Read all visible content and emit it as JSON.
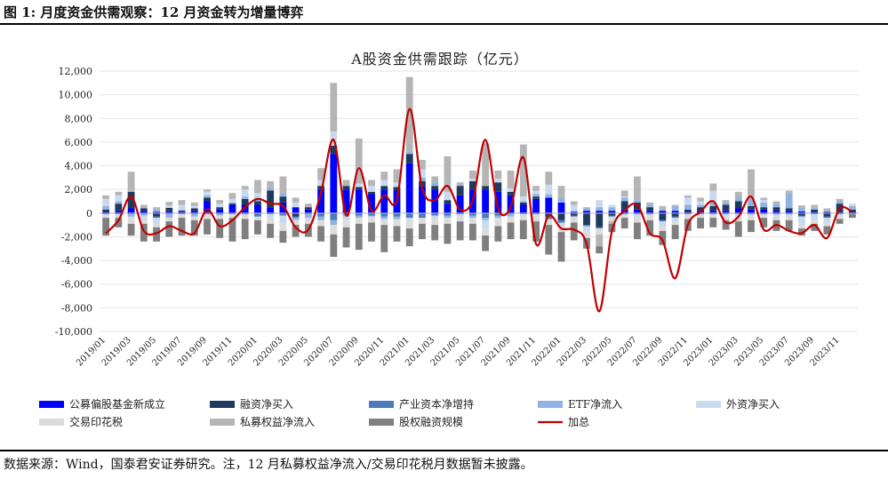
{
  "figure": {
    "title": "图 1: 月度资金供需观察：12 月资金转为增量博弈",
    "source": "数据来源：Wind，国泰君安证券研究。注，12 月私募权益净流入/交易印花税月数据暂未披露。"
  },
  "chart_data": {
    "type": "bar",
    "stacked": true,
    "title": "A股资金供需跟踪（亿元）",
    "ylim": [
      -10000,
      12000
    ],
    "yticks": [
      -10000,
      -8000,
      -6000,
      -4000,
      -2000,
      0,
      2000,
      4000,
      6000,
      8000,
      10000,
      12000
    ],
    "ytick_labels": [
      "-10,000",
      "-8,000",
      "-6,000",
      "-4,000",
      "-2,000",
      "0",
      "2,000",
      "4,000",
      "6,000",
      "8,000",
      "10,000",
      "12,000"
    ],
    "categories": [
      "2019/01",
      "2019/02",
      "2019/03",
      "2019/04",
      "2019/05",
      "2019/06",
      "2019/07",
      "2019/08",
      "2019/09",
      "2019/10",
      "2019/11",
      "2019/12",
      "2020/01",
      "2020/02",
      "2020/03",
      "2020/04",
      "2020/05",
      "2020/06",
      "2020/07",
      "2020/08",
      "2020/09",
      "2020/10",
      "2020/11",
      "2020/12",
      "2021/01",
      "2021/02",
      "2021/03",
      "2021/04",
      "2021/05",
      "2021/06",
      "2021/07",
      "2021/08",
      "2021/09",
      "2021/10",
      "2021/11",
      "2021/12",
      "2022/01",
      "2022/02",
      "2022/03",
      "2022/04",
      "2022/05",
      "2022/06",
      "2022/07",
      "2022/08",
      "2022/09",
      "2022/10",
      "2022/11",
      "2022/12",
      "2023/01",
      "2023/02",
      "2023/03",
      "2023/04",
      "2023/05",
      "2023/06",
      "2023/07",
      "2023/08",
      "2023/09",
      "2023/10",
      "2023/11",
      "2023/12"
    ],
    "xtick_labels": [
      "2019/01",
      "2019/03",
      "2019/05",
      "2019/07",
      "2019/09",
      "2019/11",
      "2020/01",
      "2020/03",
      "2020/05",
      "2020/07",
      "2020/09",
      "2020/11",
      "2021/01",
      "2021/03",
      "2021/05",
      "2021/07",
      "2021/09",
      "2021/11",
      "2022/01",
      "2022/03",
      "2022/05",
      "2022/07",
      "2022/09",
      "2022/11",
      "2023/01",
      "2023/03",
      "2023/05",
      "2023/07",
      "2023/09",
      "2023/11"
    ],
    "legend_position": "bottom",
    "series": [
      {
        "name": "公募偏股基金新成立",
        "kind": "bar",
        "color": "#0000ff",
        "values": [
          100,
          200,
          400,
          200,
          100,
          150,
          100,
          200,
          1000,
          300,
          700,
          700,
          700,
          500,
          900,
          500,
          300,
          2000,
          5000,
          2000,
          2000,
          1600,
          2000,
          1900,
          4200,
          2300,
          2000,
          800,
          1500,
          2000,
          2000,
          1800,
          1500,
          700,
          1200,
          1300,
          900,
          100,
          200,
          200,
          200,
          300,
          300,
          200,
          200,
          200,
          100,
          200,
          200,
          200,
          400,
          300,
          300,
          200,
          200,
          150,
          100,
          100,
          100,
          100
        ]
      },
      {
        "name": "融资净买入",
        "kind": "bar",
        "color": "#1f3a5f",
        "values": [
          200,
          600,
          1400,
          200,
          -300,
          300,
          100,
          200,
          300,
          200,
          100,
          500,
          300,
          1400,
          500,
          -300,
          200,
          300,
          700,
          300,
          200,
          200,
          300,
          300,
          800,
          400,
          300,
          300,
          800,
          700,
          300,
          800,
          300,
          200,
          200,
          -300,
          -600,
          -200,
          -1000,
          -1200,
          -200,
          700,
          600,
          300,
          -600,
          -300,
          200,
          300,
          400,
          500,
          600,
          300,
          200,
          300,
          200,
          -200,
          200,
          -300,
          700,
          200
        ]
      },
      {
        "name": "产业资本净增持",
        "kind": "bar",
        "color": "#4a7ab7",
        "values": [
          -100,
          -100,
          -100,
          -100,
          -100,
          -100,
          -100,
          -100,
          -100,
          -100,
          -100,
          -100,
          -300,
          -100,
          -200,
          -100,
          -100,
          -300,
          -600,
          -100,
          -200,
          -200,
          -300,
          -300,
          -400,
          -400,
          -200,
          -200,
          -100,
          -200,
          -400,
          -200,
          -100,
          -100,
          -100,
          -200,
          -200,
          -100,
          -100,
          -100,
          -100,
          -100,
          -100,
          -100,
          -100,
          -100,
          -100,
          -100,
          -100,
          -100,
          -100,
          -100,
          -100,
          -100,
          -100,
          -100,
          -100,
          -100,
          -100,
          -100
        ]
      },
      {
        "name": "ETF净流入",
        "kind": "bar",
        "color": "#8fb4e3",
        "values": [
          300,
          200,
          -200,
          -100,
          200,
          -300,
          100,
          -200,
          200,
          -100,
          100,
          200,
          300,
          200,
          300,
          -200,
          -300,
          -300,
          -400,
          -200,
          -200,
          -100,
          -200,
          -200,
          200,
          300,
          300,
          -200,
          100,
          -200,
          -200,
          -200,
          -200,
          100,
          200,
          300,
          400,
          100,
          200,
          300,
          300,
          300,
          200,
          200,
          100,
          400,
          400,
          200,
          300,
          200,
          300,
          600,
          400,
          300,
          1300,
          300,
          200,
          100,
          200,
          300
        ]
      },
      {
        "name": "外资净买入",
        "kind": "bar",
        "color": "#c9daf0",
        "values": [
          600,
          500,
          -100,
          -300,
          -500,
          200,
          400,
          200,
          300,
          300,
          300,
          600,
          400,
          -300,
          -700,
          400,
          -200,
          500,
          1200,
          -300,
          300,
          500,
          500,
          400,
          -200,
          700,
          -300,
          700,
          -200,
          200,
          -700,
          300,
          300,
          400,
          300,
          800,
          -300,
          500,
          -400,
          600,
          200,
          100,
          -300,
          -100,
          -400,
          -300,
          600,
          300,
          1000,
          -100,
          -200,
          -100,
          200,
          -200,
          -200,
          -700,
          -500,
          -400,
          -100,
          200
        ]
      },
      {
        "name": "交易印花税",
        "kind": "bar",
        "color": "#dcdcdc",
        "values": [
          -300,
          -300,
          -500,
          -400,
          -300,
          -300,
          -300,
          -300,
          -400,
          -300,
          -300,
          -400,
          -300,
          -500,
          -600,
          -400,
          -300,
          -500,
          -800,
          -600,
          -500,
          -500,
          -500,
          -600,
          -700,
          -500,
          -500,
          -500,
          -400,
          -500,
          -600,
          -700,
          -500,
          -500,
          -600,
          -500,
          -500,
          -500,
          -600,
          -500,
          -400,
          -300,
          -400,
          -400,
          -400,
          -300,
          -400,
          -300,
          -300,
          -400,
          -400,
          -400,
          -300,
          -300,
          -300,
          -300,
          -300,
          -300,
          -300,
          0
        ]
      },
      {
        "name": "私募权益净流入",
        "kind": "bar",
        "color": "#b5b5b5",
        "values": [
          300,
          300,
          1700,
          300,
          200,
          300,
          400,
          300,
          200,
          300,
          500,
          300,
          1100,
          600,
          1400,
          400,
          300,
          1000,
          4100,
          500,
          3800,
          500,
          700,
          1100,
          6300,
          800,
          500,
          3000,
          200,
          700,
          3600,
          700,
          1500,
          4400,
          400,
          1100,
          1000,
          300,
          100,
          -1000,
          -200,
          500,
          2000,
          200,
          300,
          100,
          200,
          300,
          600,
          200,
          500,
          2500,
          200,
          200,
          200,
          200,
          200,
          200,
          200,
          0
        ]
      },
      {
        "name": "股权融资规模",
        "kind": "bar",
        "color": "#7f7f7f",
        "values": [
          -1500,
          -800,
          -1000,
          -1500,
          -1200,
          -1300,
          -1500,
          -1300,
          -1300,
          -1600,
          -2000,
          -1700,
          -1200,
          -1200,
          -1000,
          -1000,
          -1100,
          -1300,
          -1900,
          -1700,
          -2200,
          -1600,
          -2300,
          -1300,
          -1500,
          -1300,
          -1300,
          -1700,
          -1600,
          -1400,
          -1300,
          -1300,
          -1400,
          -1600,
          -1700,
          -2500,
          -2500,
          -1500,
          -900,
          -600,
          -700,
          -900,
          -1400,
          -1300,
          -1200,
          -1200,
          -1000,
          -900,
          -800,
          -800,
          -1300,
          -1000,
          -800,
          -900,
          -900,
          -600,
          -600,
          -700,
          -400,
          -300
        ]
      },
      {
        "name": "加总",
        "kind": "line",
        "color": "#c00000",
        "values": [
          -1700,
          -600,
          1400,
          -1500,
          -1700,
          -1100,
          -1500,
          -1700,
          300,
          -1100,
          -600,
          500,
          1200,
          800,
          600,
          -1200,
          -1400,
          1700,
          6200,
          -200,
          3800,
          200,
          1500,
          1100,
          8800,
          2100,
          1100,
          2300,
          300,
          1100,
          6200,
          400,
          500,
          4700,
          -2600,
          -200,
          -1300,
          -1400,
          -2600,
          -8300,
          -1500,
          200,
          700,
          -1700,
          -2300,
          -5500,
          -1000,
          100,
          1000,
          -800,
          -300,
          1400,
          -1400,
          -1000,
          -1500,
          -1700,
          -1000,
          -2100,
          400,
          100
        ]
      }
    ]
  }
}
